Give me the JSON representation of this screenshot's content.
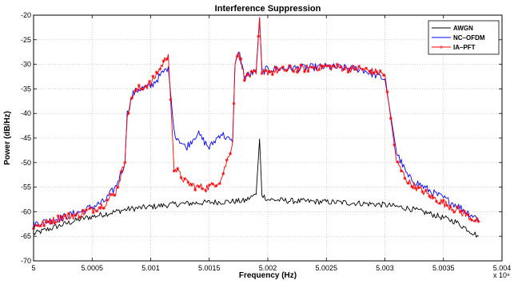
{
  "chart_data": {
    "type": "line",
    "title": "Interference Suppression",
    "xlabel": "Frequency (Hz)",
    "ylabel": "Power (dB/Hz)",
    "x_multiplier": "x 10⁹",
    "xlim": [
      5.0,
      5.004
    ],
    "ylim": [
      -70,
      -20
    ],
    "xticks": [
      "5",
      "5.0005",
      "5.001",
      "5.0015",
      "5.002",
      "5.0025",
      "5.003",
      "5.0035",
      "5.004"
    ],
    "yticks": [
      "-20",
      "-25",
      "-30",
      "-35",
      "-40",
      "-45",
      "-50",
      "-55",
      "-60",
      "-65",
      "-70"
    ],
    "grid": true,
    "legend_position": "top-right",
    "series": [
      {
        "name": "AWGN",
        "color": "#000000",
        "marker": "none",
        "x": [
          5.0,
          5.0002,
          5.0004,
          5.0006,
          5.0008,
          5.001,
          5.0012,
          5.0014,
          5.0016,
          5.0018,
          5.0019,
          5.00193,
          5.00195,
          5.002,
          5.0022,
          5.0025,
          5.0028,
          5.003,
          5.0032,
          5.0034,
          5.0036,
          5.0038
        ],
        "y": [
          -64.5,
          -63.0,
          -61.5,
          -60.5,
          -59.5,
          -59.0,
          -58.5,
          -58.2,
          -58.0,
          -57.8,
          -56.5,
          -45.2,
          -56.5,
          -57.5,
          -57.8,
          -58.0,
          -58.3,
          -58.6,
          -59.3,
          -60.5,
          -62.0,
          -65.0
        ]
      },
      {
        "name": "NC–OFDM",
        "color": "#0000ff",
        "marker": "none",
        "x": [
          5.0,
          5.0002,
          5.0004,
          5.0006,
          5.0007,
          5.00078,
          5.0008,
          5.00085,
          5.0009,
          5.001,
          5.00115,
          5.0012,
          5.0013,
          5.0014,
          5.0015,
          5.0016,
          5.0017,
          5.00172,
          5.00175,
          5.0018,
          5.0019,
          5.00193,
          5.00195,
          5.002,
          5.0022,
          5.0025,
          5.0028,
          5.003,
          5.0031,
          5.0032,
          5.0034,
          5.0036,
          5.0038
        ],
        "y": [
          -62.5,
          -61.5,
          -60.0,
          -58.0,
          -55.0,
          -50.0,
          -40.0,
          -36.0,
          -35.0,
          -34.5,
          -30.5,
          -44.0,
          -47.0,
          -44.0,
          -47.0,
          -44.0,
          -46.0,
          -30.0,
          -27.0,
          -32.5,
          -31.5,
          -20.5,
          -31.5,
          -31.0,
          -30.8,
          -30.5,
          -31.0,
          -33.0,
          -48.0,
          -53.0,
          -56.0,
          -58.5,
          -61.5
        ]
      },
      {
        "name": "IA–PFT",
        "color": "#ff0000",
        "marker": "asterisk",
        "x": [
          5.0,
          5.0002,
          5.0004,
          5.0006,
          5.0007,
          5.00078,
          5.0008,
          5.00085,
          5.0009,
          5.001,
          5.00115,
          5.0012,
          5.0013,
          5.0014,
          5.0015,
          5.0016,
          5.0017,
          5.00172,
          5.00175,
          5.0018,
          5.0019,
          5.00193,
          5.00195,
          5.002,
          5.0022,
          5.0025,
          5.0028,
          5.003,
          5.0031,
          5.0032,
          5.0034,
          5.0036,
          5.0038
        ],
        "y": [
          -63.0,
          -61.5,
          -60.5,
          -58.5,
          -56.0,
          -50.0,
          -40.0,
          -36.0,
          -35.0,
          -34.0,
          -28.0,
          -51.0,
          -54.0,
          -55.0,
          -55.0,
          -53.5,
          -46.0,
          -30.0,
          -27.5,
          -32.5,
          -32.0,
          -20.5,
          -32.0,
          -31.5,
          -31.0,
          -30.5,
          -31.0,
          -32.0,
          -50.0,
          -54.0,
          -57.0,
          -59.5,
          -62.0
        ]
      }
    ]
  }
}
